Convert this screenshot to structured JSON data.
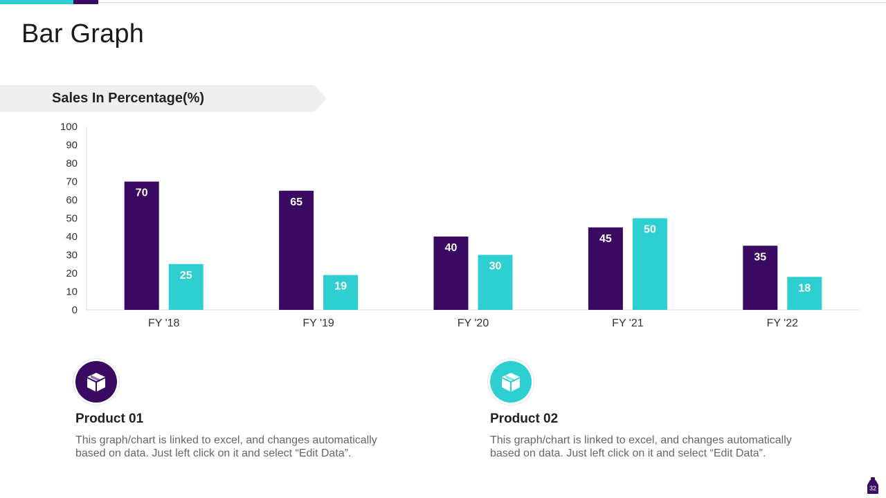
{
  "page": {
    "title": "Bar Graph",
    "page_number": "32"
  },
  "colors": {
    "product01": "#3a0a63",
    "product02": "#2ecfd0",
    "axis": "#d9d9d9",
    "text": "#222222"
  },
  "chart_data": {
    "type": "bar",
    "title": "Sales In Percentage(%)",
    "xlabel": "",
    "ylabel": "",
    "ylim": [
      0,
      100
    ],
    "yticks": [
      0,
      10,
      20,
      30,
      40,
      50,
      60,
      70,
      80,
      90,
      100
    ],
    "categories": [
      "FY '18",
      "FY '19",
      "FY '20",
      "FY '21",
      "FY '22"
    ],
    "series": [
      {
        "name": "Product 01",
        "values": [
          70,
          65,
          40,
          45,
          35
        ]
      },
      {
        "name": "Product 02",
        "values": [
          25,
          19,
          30,
          50,
          18
        ]
      }
    ],
    "grid": false,
    "data_labels": true
  },
  "products": [
    {
      "title": "Product 01",
      "icon": "box-icon",
      "description": "This graph/chart is linked to excel, and changes automatically based on data. Just left click on it and select “Edit Data”."
    },
    {
      "title": "Product 02",
      "icon": "box-icon",
      "description": "This graph/chart is linked to excel, and changes automatically based on data. Just left click on it and select “Edit Data”."
    }
  ]
}
